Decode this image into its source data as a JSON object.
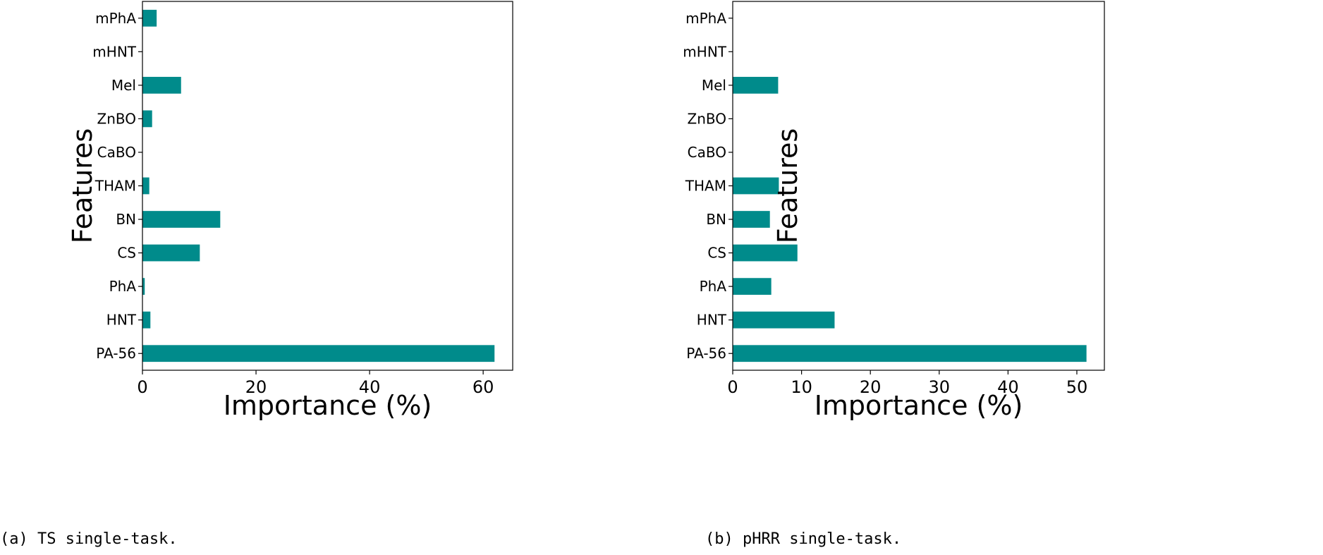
{
  "chart_data": [
    {
      "type": "bar",
      "orientation": "horizontal",
      "categories": [
        "PA-56",
        "HNT",
        "PhA",
        "CS",
        "BN",
        "THAM",
        "CaBO",
        "ZnBO",
        "Mel",
        "mHNT",
        "mPhA"
      ],
      "values": [
        62.0,
        1.4,
        0.4,
        10.1,
        13.7,
        1.2,
        0.0,
        1.7,
        6.8,
        0.0,
        2.5
      ],
      "xlabel": "Importance (%)",
      "ylabel": "Features",
      "xlim": [
        0,
        65.2
      ],
      "xticks": [
        0,
        20,
        40,
        60
      ],
      "grid": false,
      "bar_color": "#008b8b",
      "caption": "(a) TS single-task."
    },
    {
      "type": "bar",
      "orientation": "horizontal",
      "categories": [
        "PA-56",
        "HNT",
        "PhA",
        "CS",
        "BN",
        "THAM",
        "CaBO",
        "ZnBO",
        "Mel",
        "mHNT",
        "mPhA"
      ],
      "values": [
        51.4,
        14.8,
        5.6,
        9.4,
        5.4,
        6.7,
        0.0,
        0.0,
        6.6,
        0.0,
        0.0
      ],
      "xlabel": "Importance (%)",
      "ylabel": "Features",
      "xlim": [
        0,
        54.0
      ],
      "xticks": [
        0,
        10,
        20,
        30,
        40,
        50
      ],
      "grid": false,
      "bar_color": "#008b8b",
      "caption": "(b) pHRR single-task."
    }
  ]
}
